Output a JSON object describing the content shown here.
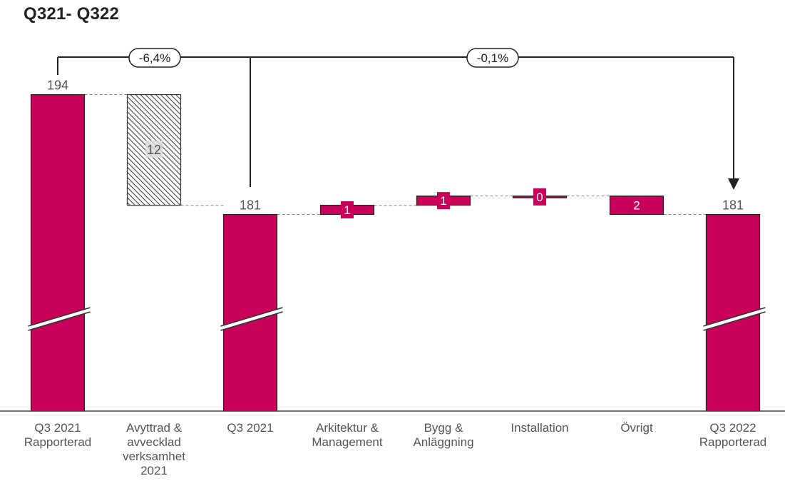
{
  "title": "Q321- Q322",
  "colors": {
    "bar": "#c8005a",
    "hatch": "#555555",
    "text": "#555555",
    "arrow": "#222222"
  },
  "annotations": {
    "left_change": "-6,4%",
    "right_change": "-0,1%"
  },
  "chart_data": {
    "type": "bar",
    "subtype": "waterfall",
    "title": "Q321- Q322",
    "axis_break": true,
    "categories": [
      [
        "Q3 2021",
        "Rapporterad"
      ],
      [
        "Avyttrad &",
        "avvecklad",
        "verksamhet",
        "2021"
      ],
      [
        "Q3 2021"
      ],
      [
        "Arkitektur &",
        "Management"
      ],
      [
        "Bygg &",
        "Anläggning"
      ],
      [
        "Installation"
      ],
      [
        "Övrigt"
      ],
      [
        "Q3 2022",
        "Rapporterad"
      ]
    ],
    "bars": [
      {
        "kind": "total",
        "value": 194,
        "label": "194"
      },
      {
        "kind": "decrease",
        "value": 12,
        "from": 194,
        "to": 182,
        "label": "12",
        "style": "hatched"
      },
      {
        "kind": "total",
        "value": 181,
        "label": "181"
      },
      {
        "kind": "increase",
        "value": 1,
        "from": 181,
        "to": 182,
        "label": "1"
      },
      {
        "kind": "increase",
        "value": 1,
        "from": 182,
        "to": 183,
        "label": "1"
      },
      {
        "kind": "increase",
        "value": 0,
        "from": 183,
        "to": 183,
        "label": "0"
      },
      {
        "kind": "decrease",
        "value": 2,
        "from": 183,
        "to": 181,
        "label": "2"
      },
      {
        "kind": "total",
        "value": 181,
        "label": "181"
      }
    ]
  }
}
